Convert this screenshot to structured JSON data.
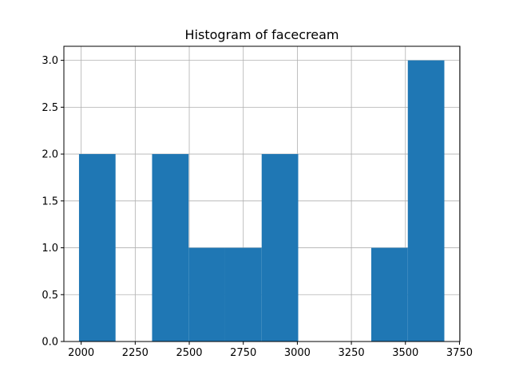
{
  "chart_data": {
    "type": "bar",
    "title": "Histogram of facecream",
    "xlabel": "",
    "ylabel": "",
    "bin_edges": [
      1990,
      2159,
      2328,
      2497,
      2666,
      2835,
      3004,
      3173,
      3342,
      3511,
      3680
    ],
    "counts": [
      2,
      0,
      2,
      1,
      1,
      2,
      0,
      0,
      1,
      3
    ],
    "xlim": [
      1920,
      3752
    ],
    "ylim": [
      0,
      3.15
    ],
    "x_ticks": [
      2000,
      2250,
      2500,
      2750,
      3000,
      3250,
      3500,
      3750
    ],
    "x_tick_labels": [
      "2000",
      "2250",
      "2500",
      "2750",
      "3000",
      "3250",
      "3500",
      "3750"
    ],
    "y_ticks": [
      0.0,
      0.5,
      1.0,
      1.5,
      2.0,
      2.5,
      3.0
    ],
    "y_tick_labels": [
      "0.0",
      "0.5",
      "1.0",
      "1.5",
      "2.0",
      "2.5",
      "3.0"
    ],
    "grid": true,
    "bar_color": "#1f77b4",
    "grid_color": "#b0b0b0"
  }
}
